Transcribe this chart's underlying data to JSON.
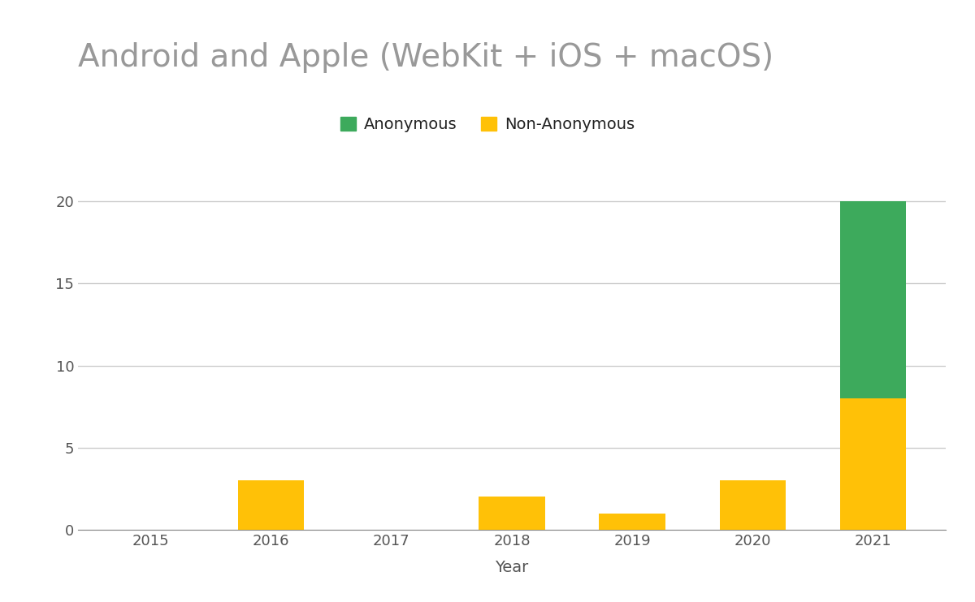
{
  "title": "Android and Apple (WebKit + iOS + macOS)",
  "xlabel": "Year",
  "categories": [
    "2015",
    "2016",
    "2017",
    "2018",
    "2019",
    "2020",
    "2021"
  ],
  "non_anonymous": [
    0,
    3,
    0,
    2,
    1,
    3,
    8
  ],
  "anonymous": [
    0,
    0,
    0,
    0,
    0,
    0,
    12
  ],
  "non_anonymous_color": "#FFC107",
  "anonymous_color": "#3DAA5C",
  "background_color": "#FFFFFF",
  "grid_color": "#CCCCCC",
  "title_color": "#999999",
  "label_color": "#555555",
  "tick_color": "#555555",
  "legend_text_color": "#222222",
  "ylim": [
    0,
    22
  ],
  "yticks": [
    0,
    5,
    10,
    15,
    20
  ],
  "title_fontsize": 28,
  "axis_label_fontsize": 14,
  "tick_fontsize": 13,
  "legend_fontsize": 14,
  "bar_width": 0.55
}
